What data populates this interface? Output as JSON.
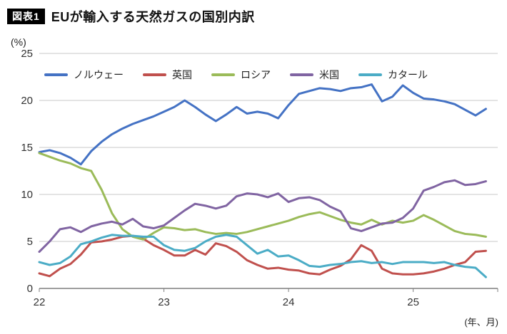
{
  "header": {
    "badge": "図表1",
    "title": "EUが輸入する天然ガスの国別内訳"
  },
  "chart_data": {
    "type": "line",
    "title": "EUが輸入する天然ガスの国別内訳",
    "ylabel": "(%)",
    "xlabel": "(年、月)",
    "ylim": [
      0,
      25
    ],
    "yticks": [
      0,
      5,
      10,
      15,
      20,
      25
    ],
    "xticks": [
      {
        "label": "22",
        "month_index": 0
      },
      {
        "label": "23",
        "month_index": 12
      },
      {
        "label": "24",
        "month_index": 24
      },
      {
        "label": "25",
        "month_index": 36
      }
    ],
    "grid": "horizontal",
    "legend_position": "top-left-inside",
    "x_months": [
      "2022-01",
      "2022-02",
      "2022-03",
      "2022-04",
      "2022-05",
      "2022-06",
      "2022-07",
      "2022-08",
      "2022-09",
      "2022-10",
      "2022-11",
      "2022-12",
      "2023-01",
      "2023-02",
      "2023-03",
      "2023-04",
      "2023-05",
      "2023-06",
      "2023-07",
      "2023-08",
      "2023-09",
      "2023-10",
      "2023-11",
      "2023-12",
      "2024-01",
      "2024-02",
      "2024-03",
      "2024-04",
      "2024-05",
      "2024-06",
      "2024-07",
      "2024-08",
      "2024-09",
      "2024-10",
      "2024-11",
      "2024-12",
      "2025-01",
      "2025-02",
      "2025-03",
      "2025-04",
      "2025-05",
      "2025-06",
      "2025-07",
      "2025-08"
    ],
    "series": [
      {
        "name": "ノルウェー",
        "color": "#4472c4",
        "values": [
          14.5,
          14.7,
          14.4,
          13.9,
          13.2,
          14.6,
          15.6,
          16.4,
          17.0,
          17.5,
          17.9,
          18.3,
          18.8,
          19.3,
          20.0,
          19.3,
          18.5,
          17.8,
          18.5,
          19.3,
          18.6,
          18.8,
          18.6,
          18.1,
          19.5,
          20.7,
          21.0,
          21.3,
          21.2,
          21.0,
          21.3,
          21.4,
          21.7,
          19.9,
          20.4,
          21.6,
          20.8,
          20.2,
          20.1,
          19.9,
          19.6,
          19.0,
          18.4,
          19.1
        ]
      },
      {
        "name": "英国",
        "color": "#c0504d",
        "values": [
          1.6,
          1.3,
          2.1,
          2.6,
          3.6,
          4.9,
          5.0,
          5.2,
          5.5,
          5.6,
          5.3,
          4.6,
          4.1,
          3.5,
          3.5,
          4.1,
          3.6,
          4.8,
          4.5,
          3.9,
          3.0,
          2.5,
          2.1,
          2.2,
          2.0,
          1.9,
          1.6,
          1.5,
          2.0,
          2.4,
          3.1,
          4.6,
          4.0,
          2.1,
          1.6,
          1.5,
          1.5,
          1.6,
          1.8,
          2.1,
          2.5,
          2.8,
          3.9,
          4.0
        ]
      },
      {
        "name": "ロシア",
        "color": "#9bbb59",
        "values": [
          14.4,
          14.0,
          13.6,
          13.3,
          12.8,
          12.5,
          10.5,
          8.0,
          6.3,
          5.5,
          5.2,
          5.9,
          6.5,
          6.4,
          6.2,
          6.3,
          6.0,
          5.8,
          5.9,
          5.8,
          6.0,
          6.3,
          6.6,
          6.9,
          7.2,
          7.6,
          7.9,
          8.1,
          7.7,
          7.3,
          7.0,
          6.8,
          7.3,
          6.8,
          7.2,
          7.0,
          7.2,
          7.8,
          7.3,
          6.7,
          6.1,
          5.8,
          5.7,
          5.5
        ]
      },
      {
        "name": "米国",
        "color": "#8064a2",
        "values": [
          3.9,
          5.0,
          6.3,
          6.5,
          6.0,
          6.6,
          6.9,
          7.1,
          6.8,
          7.4,
          6.6,
          6.4,
          6.7,
          7.5,
          8.3,
          9.0,
          8.8,
          8.5,
          8.8,
          9.8,
          10.1,
          10.0,
          9.7,
          10.1,
          9.2,
          9.6,
          9.7,
          9.4,
          8.7,
          8.2,
          6.4,
          6.1,
          6.5,
          6.9,
          7.0,
          7.5,
          8.5,
          10.4,
          10.8,
          11.3,
          11.5,
          11.0,
          11.1,
          11.4
        ]
      },
      {
        "name": "カタール",
        "color": "#4bacc6",
        "values": [
          2.8,
          2.5,
          2.7,
          3.4,
          4.7,
          5.0,
          5.4,
          5.7,
          5.6,
          5.6,
          5.5,
          5.5,
          4.6,
          4.1,
          4.0,
          4.3,
          5.0,
          5.5,
          5.7,
          5.5,
          4.6,
          3.7,
          4.1,
          3.4,
          3.5,
          3.0,
          2.4,
          2.3,
          2.5,
          2.6,
          2.8,
          2.9,
          2.7,
          2.8,
          2.6,
          2.8,
          2.8,
          2.8,
          2.7,
          2.8,
          2.5,
          2.3,
          2.2,
          1.2
        ]
      }
    ]
  }
}
